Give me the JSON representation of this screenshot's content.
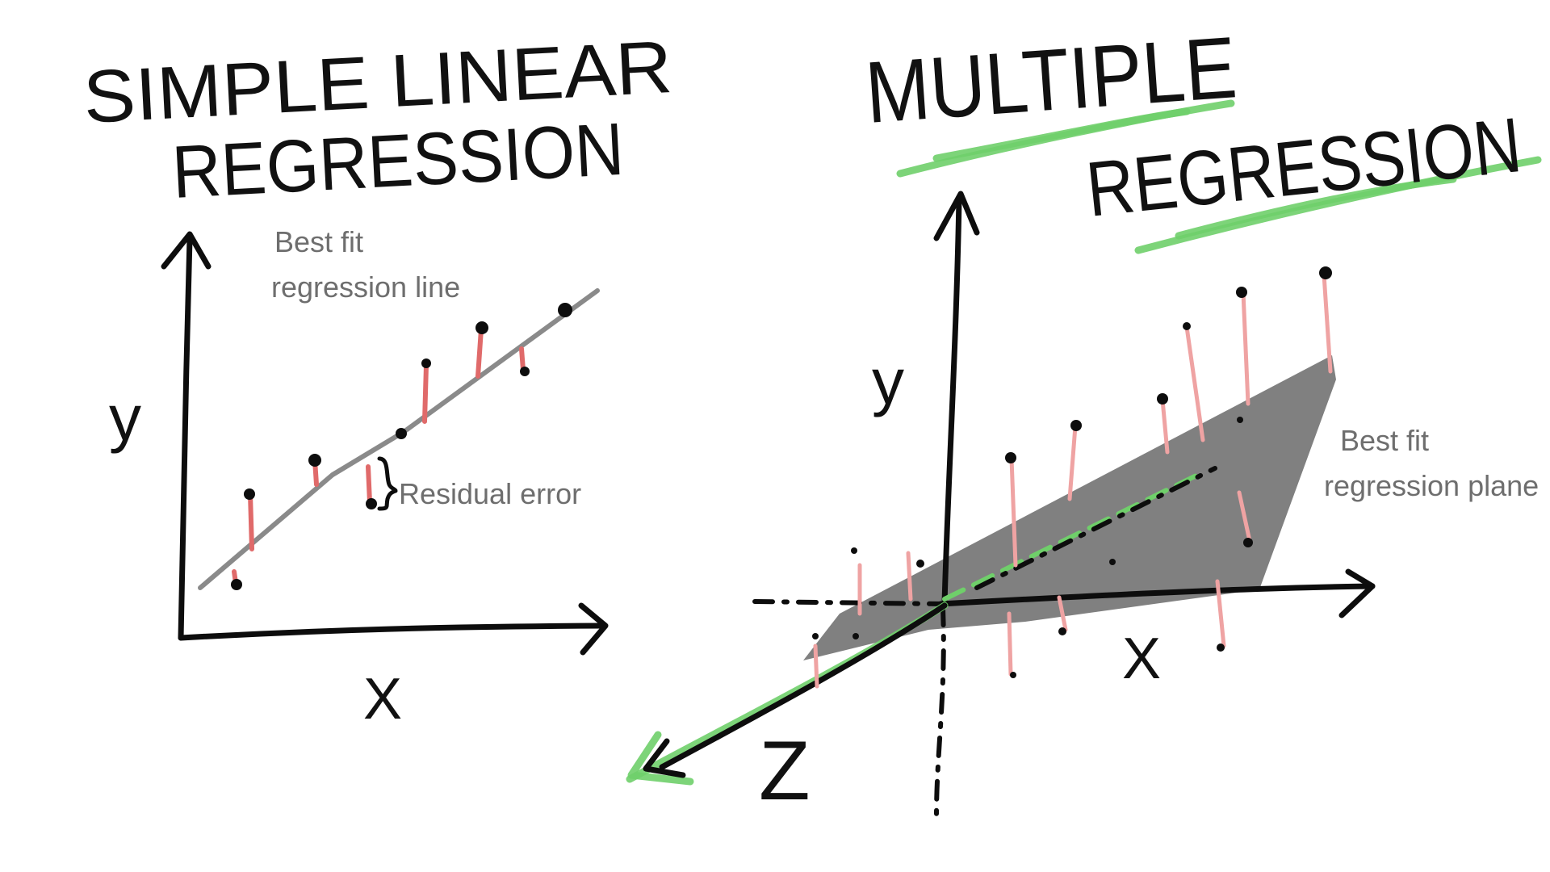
{
  "left_panel": {
    "title_line1": "SIMPLE LINEAR",
    "title_line2": "REGRESSION",
    "y_axis_label": "y",
    "x_axis_label": "X",
    "fit_label_line1": "Best fit",
    "fit_label_line2": "regression line",
    "residual_label": "Residual error"
  },
  "right_panel": {
    "title_line1": "MULTIPLE",
    "title_line2": "REGRESSION",
    "y_axis_label": "y",
    "x_axis_label": "X",
    "z_axis_label": "Z",
    "fit_label_line1": "Best fit",
    "fit_label_line2": "regression plane"
  },
  "colors": {
    "ink": "#0d0d0d",
    "label_gray": "#6e6e6e",
    "fit_gray": "#8a8a8a",
    "plane_gray": "#808080",
    "residual_red": "#e06a6a",
    "highlight_green": "#6fcf6a"
  }
}
